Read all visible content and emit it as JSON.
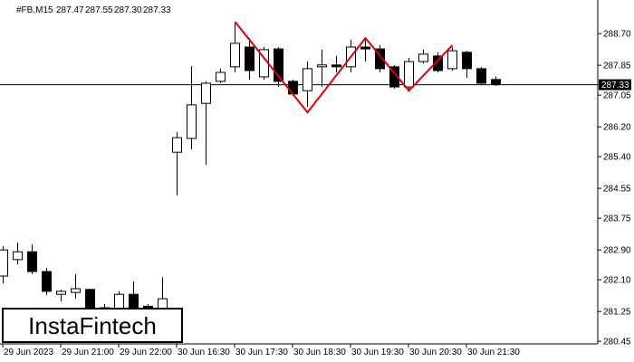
{
  "chart_data": {
    "type": "candlestick",
    "symbol": "#FB,M15",
    "header_values": [
      "287.47",
      "287.55",
      "287.30",
      "287.33"
    ],
    "categories": [
      "29 Jun 2023",
      null,
      null,
      null,
      "29 Jun 21:00",
      null,
      null,
      null,
      "29 Jun 22:00",
      null,
      null,
      null,
      "30 Jun 16:30",
      null,
      null,
      null,
      "30 Jun 17:30",
      null,
      null,
      null,
      "30 Jun 18:30",
      null,
      null,
      null,
      "30 Jun 19:30",
      null,
      null,
      null,
      "30 Jun 20:30",
      null,
      null,
      null,
      "30 Jun 21:30",
      null,
      null
    ],
    "open": [
      282.2,
      282.64,
      282.85,
      282.32,
      281.71,
      281.76,
      281.84,
      281.3,
      281.23,
      281.71,
      281.39,
      281.23,
      285.52,
      285.89,
      286.83,
      287.42,
      287.81,
      288.34,
      287.54,
      288.29,
      287.42,
      287.17,
      287.81,
      287.86,
      287.81,
      288.34,
      288.29,
      287.81,
      287.27,
      287.95,
      288.1,
      287.76,
      288.2,
      287.76,
      287.47
    ],
    "high": [
      283.0,
      283.1,
      283.05,
      282.42,
      281.84,
      282.25,
      281.86,
      281.45,
      281.79,
      282.05,
      281.45,
      282.17,
      286.06,
      287.83,
      287.42,
      287.76,
      288.99,
      288.58,
      288.34,
      288.34,
      287.47,
      287.95,
      288.27,
      288.1,
      288.53,
      288.53,
      288.39,
      287.86,
      288.05,
      288.27,
      288.2,
      288.34,
      288.24,
      287.81,
      287.55
    ],
    "low": [
      282.0,
      282.51,
      282.25,
      281.69,
      281.52,
      281.59,
      281.2,
      281.1,
      281.1,
      281.2,
      281.25,
      281.1,
      284.36,
      285.6,
      285.18,
      287.37,
      287.66,
      287.47,
      287.47,
      287.27,
      287.03,
      286.74,
      287.27,
      287.66,
      287.66,
      287.95,
      287.66,
      287.22,
      287.17,
      287.9,
      287.66,
      287.71,
      287.51,
      287.32,
      287.3
    ],
    "close": [
      282.9,
      282.85,
      282.32,
      281.79,
      281.79,
      281.86,
      281.3,
      281.35,
      281.71,
      281.35,
      281.35,
      281.59,
      285.91,
      286.79,
      287.37,
      287.66,
      288.44,
      287.71,
      288.27,
      287.42,
      287.08,
      287.76,
      287.86,
      287.81,
      288.34,
      288.29,
      287.76,
      287.27,
      287.95,
      288.15,
      287.71,
      288.24,
      287.76,
      287.37,
      287.33
    ],
    "up_color": "#ffffff",
    "down_color": "#000000",
    "ylim": [
      280.38,
      289.48
    ],
    "yticks": [
      {
        "value": 280.45,
        "label": "280.45"
      },
      {
        "value": 281.25,
        "label": "281.25"
      },
      {
        "value": 282.1,
        "label": "282.10"
      },
      {
        "value": 282.9,
        "label": "282.90"
      },
      {
        "value": 283.75,
        "label": "283.75"
      },
      {
        "value": 284.55,
        "label": "284.55"
      },
      {
        "value": 285.4,
        "label": "285.40"
      },
      {
        "value": 286.2,
        "label": "286.20"
      },
      {
        "value": 287.05,
        "label": "287.05"
      },
      {
        "value": 287.85,
        "label": "287.85"
      },
      {
        "value": 288.7,
        "label": "288.70"
      }
    ],
    "current_price": {
      "value": 287.33,
      "label": "287.33"
    },
    "pattern": {
      "color": "#e00000",
      "x": [
        16,
        21,
        25,
        28,
        31
      ],
      "values": [
        289.02,
        286.59,
        288.58,
        287.17,
        288.39
      ]
    },
    "logo": "InstaFintech"
  }
}
